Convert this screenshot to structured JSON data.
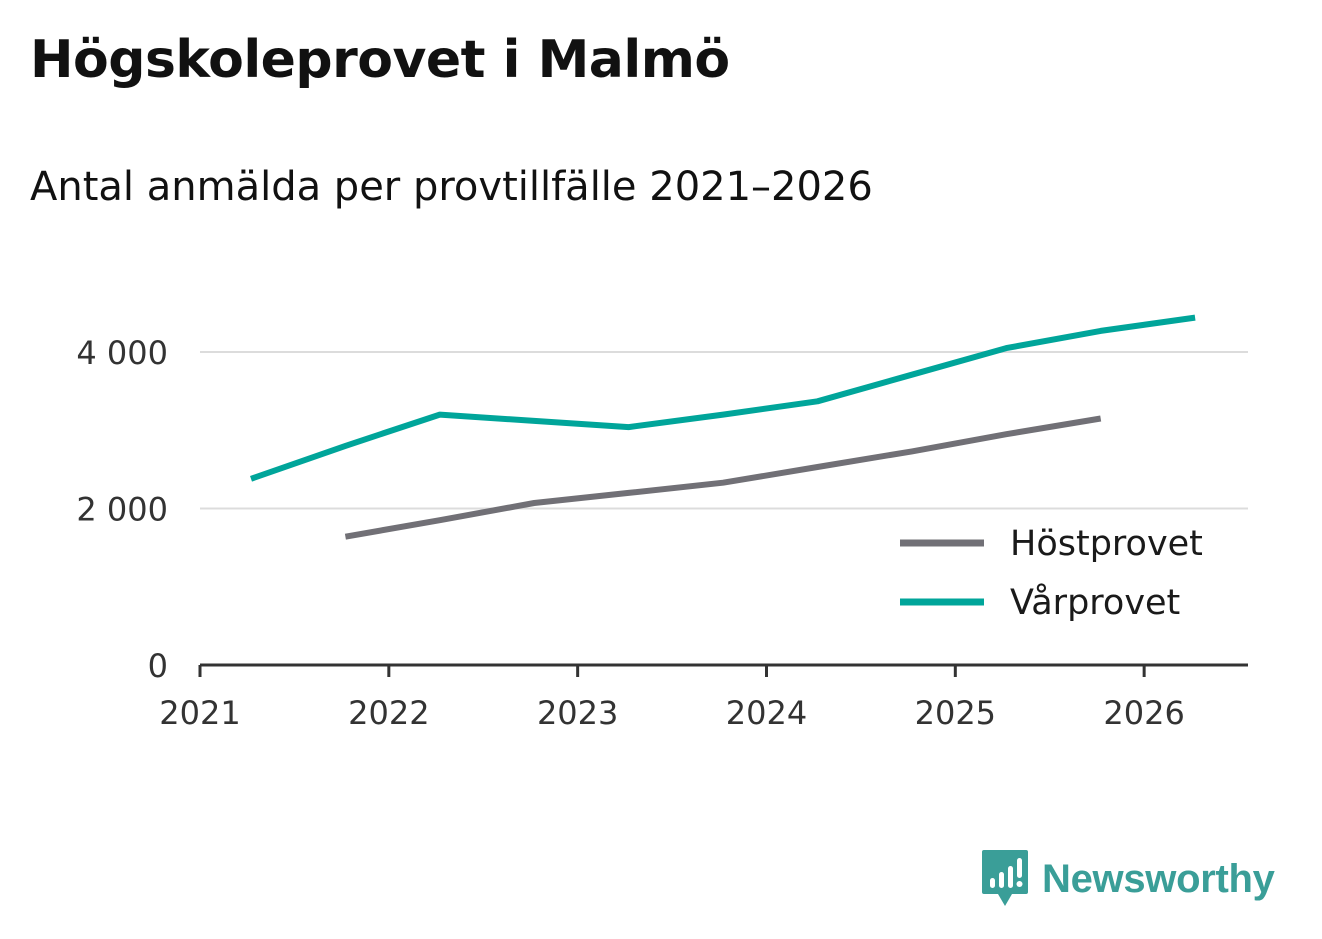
{
  "title": "Högskoleprovet i Malmö",
  "subtitle": "Antal anmälda per provtillfälle 2021–2026",
  "brand": {
    "name": "Newsworthy"
  },
  "colors": {
    "host": "#717076",
    "var": "#00a59a",
    "grid": "#dcdcdc",
    "axis": "#333333",
    "brand": "#3a9e98"
  },
  "chart_data": {
    "type": "line",
    "title": "Högskoleprovet i Malmö",
    "subtitle": "Antal anmälda per provtillfälle 2021–2026",
    "xlabel": "",
    "ylabel": "",
    "xlim": [
      2021,
      2026.55
    ],
    "ylim": [
      0,
      4000
    ],
    "x_ticks": [
      2021,
      2022,
      2023,
      2024,
      2025,
      2026
    ],
    "x_tick_labels": [
      "2021",
      "2022",
      "2023",
      "2024",
      "2025",
      "2026"
    ],
    "y_ticks": [
      0,
      2000,
      4000
    ],
    "y_tick_labels": [
      "0",
      "2 000",
      "4 000"
    ],
    "grid": true,
    "legend_position": "bottom-right",
    "series": [
      {
        "name": "Höstprovet",
        "color": "#717076",
        "x": [
          2021.77,
          2022.27,
          2022.77,
          2023.27,
          2023.77,
          2024.27,
          2024.77,
          2025.27,
          2025.77
        ],
        "values": [
          1640,
          1850,
          2070,
          2200,
          2330,
          2530,
          2730,
          2950,
          3150
        ]
      },
      {
        "name": "Vårprovet",
        "color": "#00a59a",
        "x": [
          2021.27,
          2021.77,
          2022.27,
          2022.77,
          2023.27,
          2023.77,
          2024.27,
          2024.77,
          2025.27,
          2025.77,
          2026.27
        ],
        "values": [
          2380,
          2800,
          3200,
          3120,
          3040,
          3200,
          3370,
          3710,
          4050,
          4270,
          4440
        ]
      }
    ]
  }
}
